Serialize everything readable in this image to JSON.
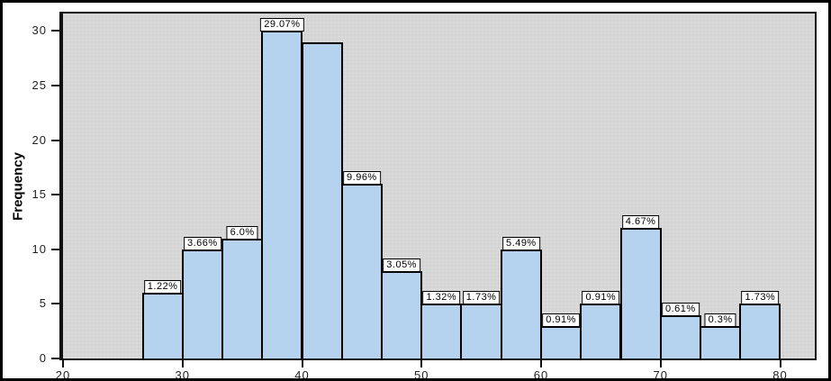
{
  "figure": {
    "background_color": "#ffffff",
    "frame_border_color": "#000000",
    "plot_background_color": "#d7d7d7"
  },
  "chart_data": {
    "type": "bar",
    "subtype": "histogram",
    "title": "",
    "xlabel": "",
    "ylabel": "Frequency",
    "grid": false,
    "legend": null,
    "xlim": [
      20,
      82.9
    ],
    "ylim": [
      0,
      31.6
    ],
    "x_ticks": [
      20,
      30,
      40,
      50,
      60,
      70,
      80
    ],
    "y_ticks": [
      0,
      5,
      10,
      15,
      20,
      25,
      30
    ],
    "bar_fill_color": "#b5d3ee",
    "bar_border_color": "#000000",
    "value_label_background": "#ffffff",
    "bin_width": 3.333,
    "bins": [
      {
        "start": 26.667,
        "end": 30.0,
        "frequency": 6,
        "label": "1.22%"
      },
      {
        "start": 30.0,
        "end": 33.333,
        "frequency": 10,
        "label": "3.66%"
      },
      {
        "start": 33.333,
        "end": 36.667,
        "frequency": 11,
        "label": "6.0%"
      },
      {
        "start": 36.667,
        "end": 40.0,
        "frequency": 30,
        "label": "29.07%"
      },
      {
        "start": 40.0,
        "end": 43.333,
        "frequency": 29,
        "label": null
      },
      {
        "start": 43.333,
        "end": 46.667,
        "frequency": 16,
        "label": "9.96%"
      },
      {
        "start": 46.667,
        "end": 50.0,
        "frequency": 8,
        "label": "3.05%"
      },
      {
        "start": 50.0,
        "end": 53.333,
        "frequency": 5,
        "label": "1.32%"
      },
      {
        "start": 53.333,
        "end": 56.667,
        "frequency": 5,
        "label": "1.73%"
      },
      {
        "start": 56.667,
        "end": 60.0,
        "frequency": 10,
        "label": "5.49%"
      },
      {
        "start": 60.0,
        "end": 63.333,
        "frequency": 3,
        "label": "0.91%"
      },
      {
        "start": 63.333,
        "end": 66.667,
        "frequency": 5,
        "label": "0.91%"
      },
      {
        "start": 66.667,
        "end": 70.0,
        "frequency": 12,
        "label": "4.67%"
      },
      {
        "start": 70.0,
        "end": 73.333,
        "frequency": 4,
        "label": "0.61%"
      },
      {
        "start": 73.333,
        "end": 76.667,
        "frequency": 3,
        "label": "0.3%"
      },
      {
        "start": 76.667,
        "end": 80.0,
        "frequency": 5,
        "label": "1.73%"
      }
    ]
  }
}
